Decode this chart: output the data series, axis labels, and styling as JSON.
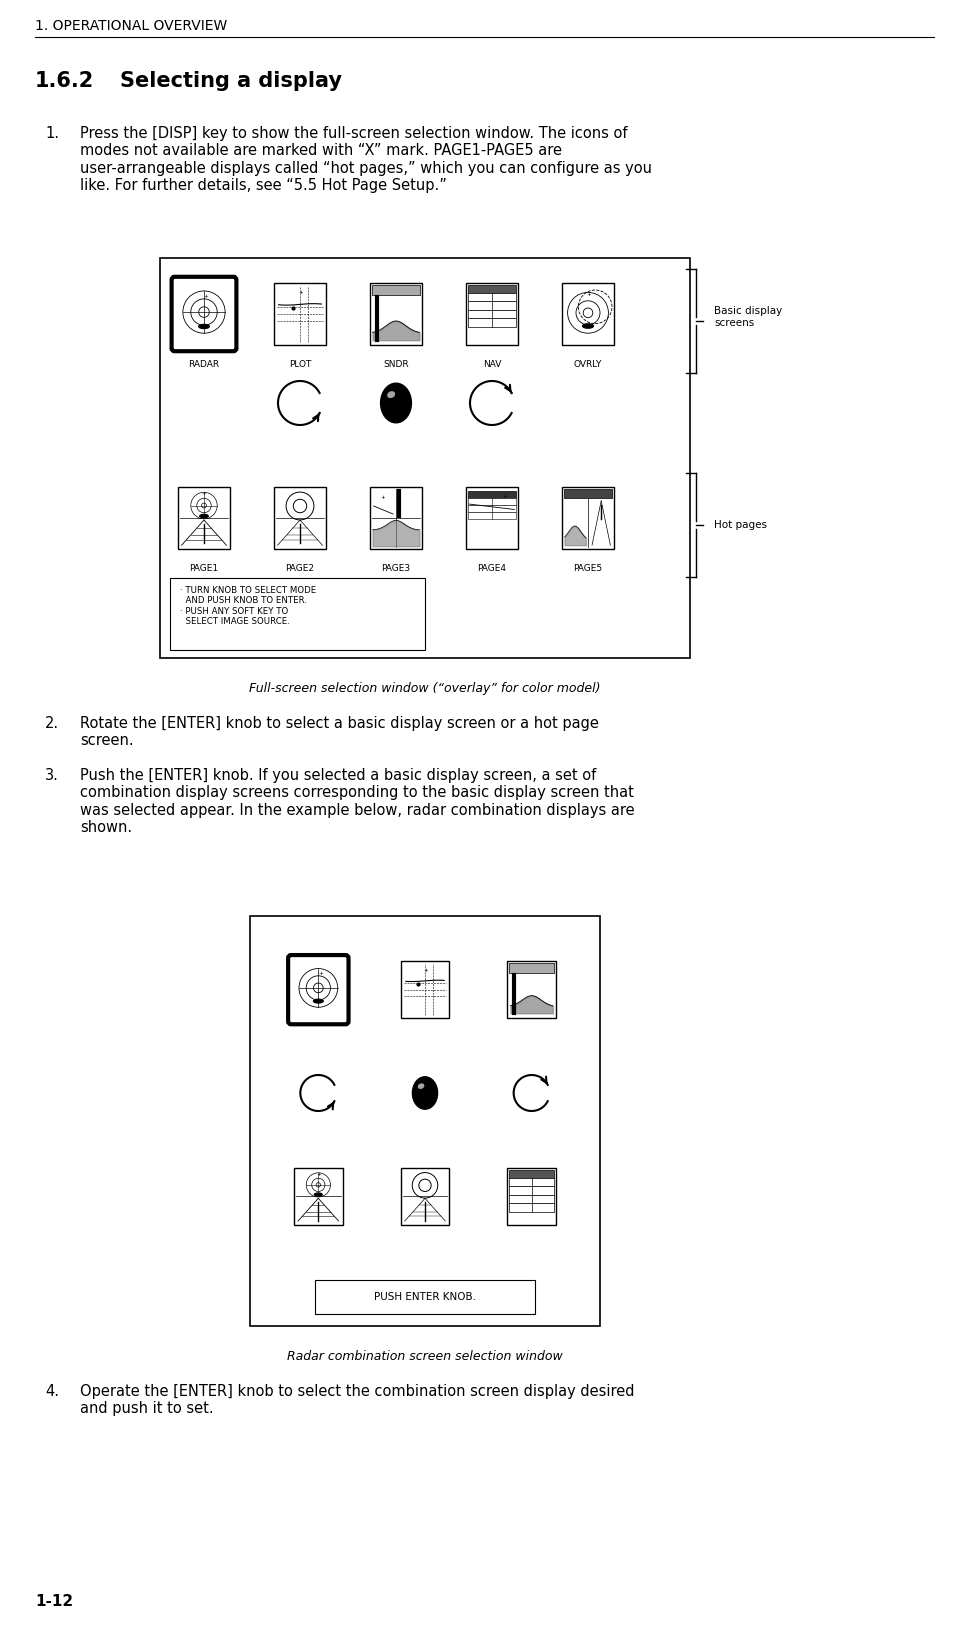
{
  "page_header": "1. OPERATIONAL OVERVIEW",
  "section_number": "1.6.2",
  "section_title": "Selecting a display",
  "footer_text": "1-12",
  "bg_color": "#ffffff",
  "text_color": "#000000",
  "body_font_size": 10.5,
  "header_font_size": 10,
  "section_font_size": 15,
  "items": [
    "Press the [DISP] key to show the full-screen selection window. The icons of\nmodes not available are marked with “X” mark. PAGE1-PAGE5 are\nuser-arrangeable displays called “hot pages,” which you can configure as you\nlike. For further details, see “5.5 Hot Page Setup.”",
    "Rotate the [ENTER] knob to select a basic display screen or a hot page\nscreen.",
    "Push the [ENTER] knob. If you selected a basic display screen, a set of\ncombination display screens corresponding to the basic display screen that\nwas selected appear. In the example below, radar combination displays are\nshown.",
    "Operate the [ENTER] knob to select the combination screen display desired\nand push it to set."
  ],
  "fig1_caption": "Full-screen selection window (“overlay” for color model)",
  "fig2_caption": "Radar combination screen selection window",
  "basic_displays": [
    "RADAR",
    "PLOT",
    "SNDR",
    "NAV",
    "OVRLY"
  ],
  "hot_pages": [
    "PAGE1",
    "PAGE2",
    "PAGE3",
    "PAGE4",
    "PAGE5"
  ],
  "instruction_text": "· TURN KNOB TO SELECT MODE\n  AND PUSH KNOB TO ENTER.\n· PUSH ANY SOFT KEY TO\n  SELECT IMAGE SOURCE.",
  "push_enter_text": "PUSH ENTER KNOB."
}
